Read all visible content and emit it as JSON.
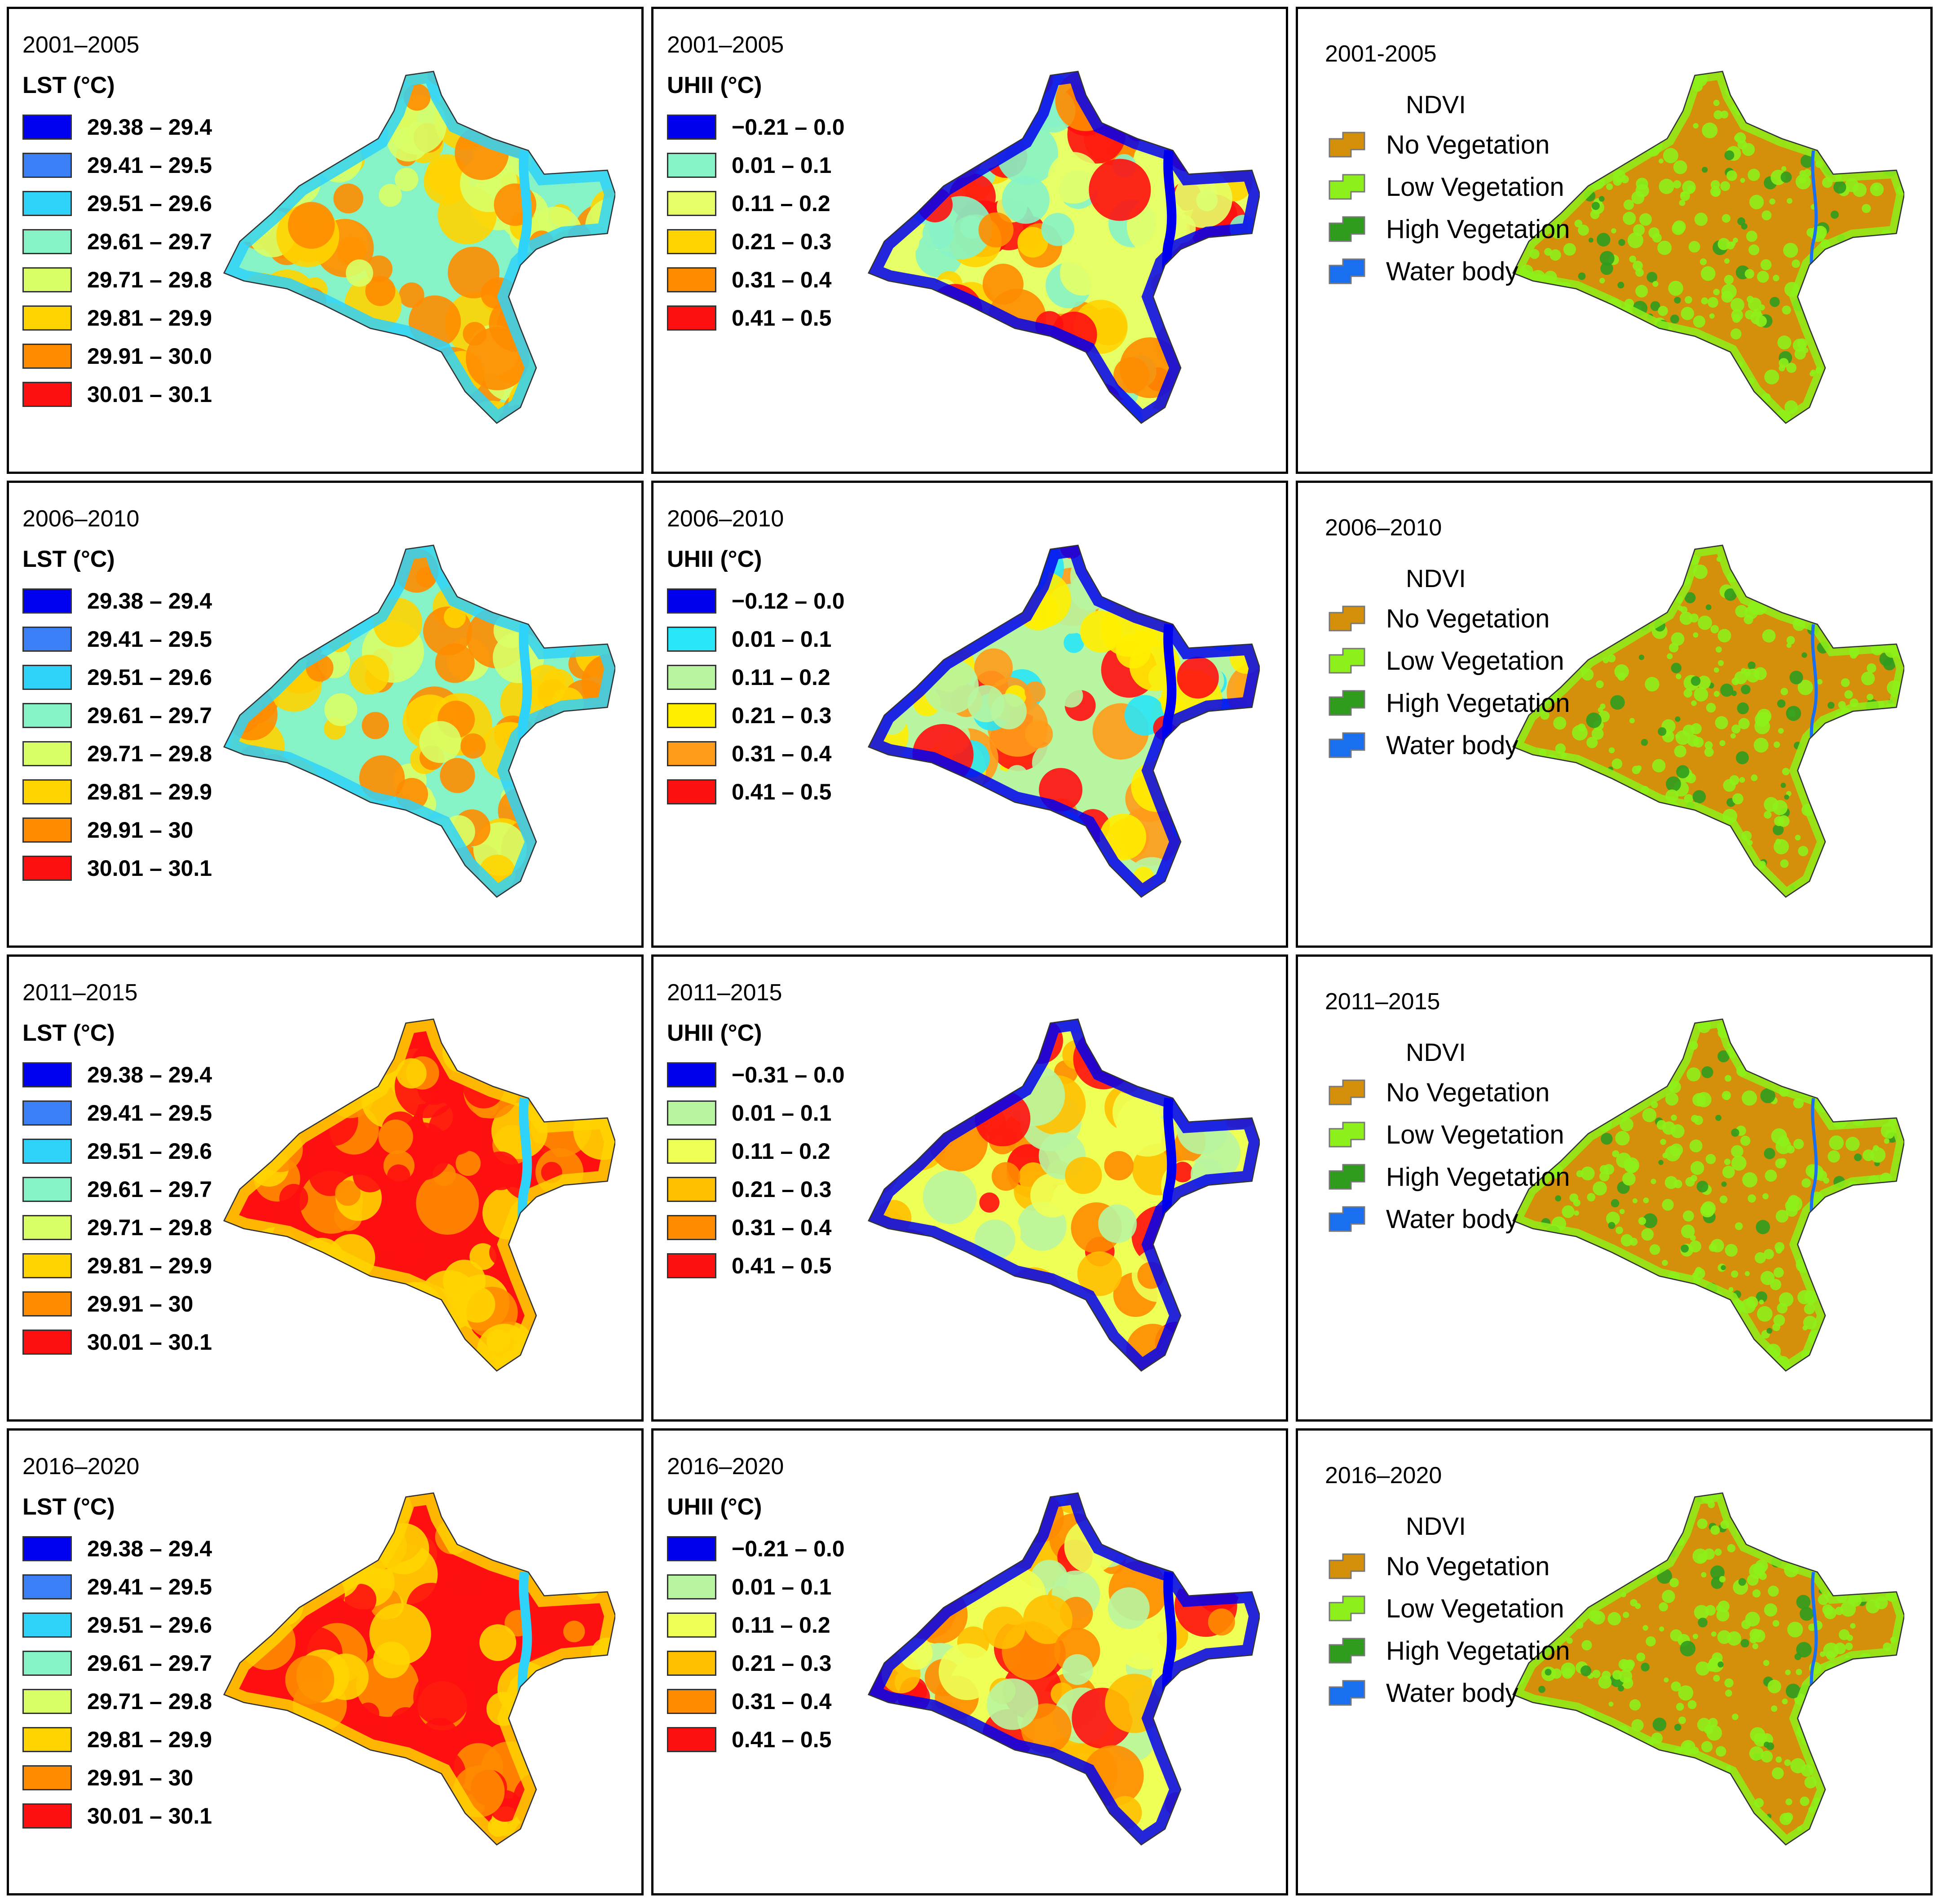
{
  "figure": {
    "rows": [
      {
        "period": "2001–2005",
        "lst": {
          "title": "LST (°C)",
          "classes": [
            "29.38 – 29.4",
            "29.41 – 29.5",
            "29.51 – 29.6",
            "29.61 – 29.7",
            "29.71 – 29.8",
            "29.81 – 29.9",
            "29.91 – 30.0",
            "30.01 – 30.1"
          ],
          "colors": [
            "#0000f0",
            "#3a7ff5",
            "#2fd2f8",
            "#86f3c6",
            "#d8ff66",
            "#ffd400",
            "#ff8c00",
            "#ff1010"
          ]
        },
        "uhii": {
          "title": "UHII (°C)",
          "classes": [
            "−0.21 – 0.0",
            "0.01 – 0.1",
            "0.11 – 0.2",
            "0.21 – 0.3",
            "0.31 – 0.4",
            "0.41 – 0.5"
          ],
          "colors": [
            "#0000ee",
            "#86f3c6",
            "#e6ff66",
            "#ffd400",
            "#ff8c00",
            "#ff1010"
          ]
        },
        "ndvi_period": "2001-2005"
      },
      {
        "period": "2006–2010",
        "lst": {
          "title": "LST (°C)",
          "classes": [
            "29.38 – 29.4",
            "29.41 – 29.5",
            "29.51 – 29.6",
            "29.61 – 29.7",
            "29.71 – 29.8",
            "29.81 – 29.9",
            "29.91 – 30",
            "30.01 – 30.1"
          ],
          "colors": [
            "#0000f0",
            "#3a7ff5",
            "#2fd2f8",
            "#86f3c6",
            "#d8ff66",
            "#ffd400",
            "#ff8c00",
            "#ff1010"
          ]
        },
        "uhii": {
          "title": "UHII (°C)",
          "classes": [
            "−0.12 – 0.0",
            "0.01 – 0.1",
            "0.11 – 0.2",
            "0.21 – 0.3",
            "0.31 – 0.4",
            "0.41 – 0.5"
          ],
          "colors": [
            "#0000ee",
            "#28e6f8",
            "#b8f5a0",
            "#ffee00",
            "#ff9c1a",
            "#ff1010"
          ]
        },
        "ndvi_period": "2006–2010"
      },
      {
        "period": "2011–2015",
        "lst": {
          "title": "LST (°C)",
          "classes": [
            "29.38 – 29.4",
            "29.41 – 29.5",
            "29.51 – 29.6",
            "29.61 – 29.7",
            "29.71 – 29.8",
            "29.81 – 29.9",
            "29.91 – 30",
            "30.01 – 30.1"
          ],
          "colors": [
            "#0000f0",
            "#3a7ff5",
            "#2fd2f8",
            "#86f3c6",
            "#d8ff66",
            "#ffd400",
            "#ff8c00",
            "#ff1010"
          ]
        },
        "uhii": {
          "title": "UHII (°C)",
          "classes": [
            "−0.31 – 0.0",
            "0.01 – 0.1",
            "0.11 – 0.2",
            "0.21 – 0.3",
            "0.31 – 0.4",
            "0.41 – 0.5"
          ],
          "colors": [
            "#0000ee",
            "#b8f5a0",
            "#eeff55",
            "#ffc000",
            "#ff8c00",
            "#ff1010"
          ]
        },
        "ndvi_period": "2011–2015"
      },
      {
        "period": "2016–2020",
        "lst": {
          "title": "LST (°C)",
          "classes": [
            "29.38 – 29.4",
            "29.41 – 29.5",
            "29.51 – 29.6",
            "29.61 – 29.7",
            "29.71 – 29.8",
            "29.81 – 29.9",
            "29.91 – 30",
            "30.01 – 30.1"
          ],
          "colors": [
            "#0000f0",
            "#3a7ff5",
            "#2fd2f8",
            "#86f3c6",
            "#d8ff66",
            "#ffd400",
            "#ff8c00",
            "#ff1010"
          ]
        },
        "uhii": {
          "title": "UHII (°C)",
          "classes": [
            "−0.21 – 0.0",
            "0.01 – 0.1",
            "0.11 – 0.2",
            "0.21 – 0.3",
            "0.31 – 0.4",
            "0.41 – 0.5"
          ],
          "colors": [
            "#0000ee",
            "#b8f5a0",
            "#eeff55",
            "#ffc000",
            "#ff8c00",
            "#ff1010"
          ]
        },
        "ndvi_period": "2016–2020"
      }
    ],
    "ndvi": {
      "title": "NDVI",
      "classes": [
        "No Vegetation",
        "Low Vegetation",
        "High Vegetation",
        "Water body"
      ],
      "colors": [
        "#d4900a",
        "#8ef01a",
        "#2f9c1e",
        "#1a6ff0"
      ]
    },
    "map_fill": {
      "lst": [
        "#86f3c6",
        "#ffd400",
        "#ff8c00",
        "#ff8c00",
        "#ff1010",
        "#ff1010"
      ],
      "uhii": [
        "#ffd400",
        "#ff8c00",
        "#ffee00",
        "#ffc000",
        "#ffc000"
      ],
      "ndvi_base": "#d4900a",
      "ndvi_edge": "#8ef01a"
    }
  }
}
